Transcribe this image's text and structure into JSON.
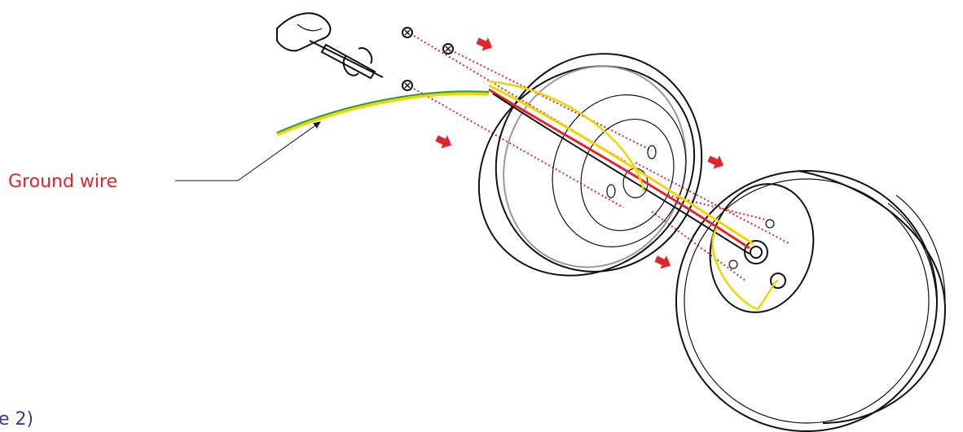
{
  "labels": {
    "ground_wire": "Ground wire",
    "caption": "e 2)"
  }
}
